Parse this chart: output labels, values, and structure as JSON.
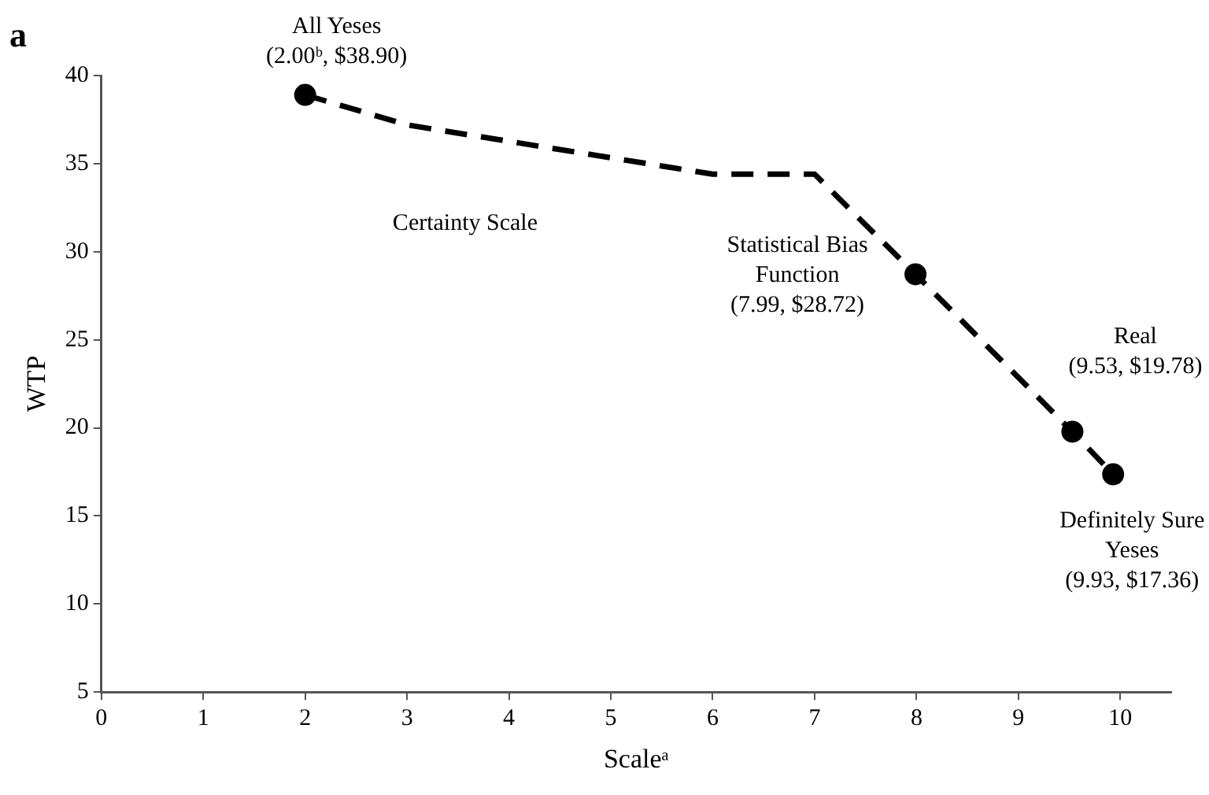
{
  "chart_data": {
    "type": "line",
    "xlabel": "Scaleᵃ",
    "ylabel": "WTP",
    "xlim": [
      0,
      10.5
    ],
    "xticks": [
      0,
      1,
      2,
      3,
      4,
      5,
      6,
      7,
      8,
      9,
      10
    ],
    "ylim": [
      5,
      40
    ],
    "yticks": [
      5,
      10,
      15,
      20,
      25,
      30,
      35,
      40
    ],
    "grid": false,
    "legend": false,
    "series": [
      {
        "type": "line",
        "color": "#000000",
        "line_style": "dashed",
        "marker": "none",
        "x": [
          2.0,
          3,
          6,
          7,
          7.99,
          9.53,
          9.93,
          10.0
        ],
        "values": [
          38.9,
          37.2,
          34.4,
          34.4,
          28.72,
          19.78,
          17.36,
          16.9
        ]
      },
      {
        "type": "scatter",
        "color": "#000000",
        "marker": "circle",
        "x": [
          2.0,
          7.99,
          9.53,
          9.93
        ],
        "values": [
          38.9,
          28.72,
          19.78,
          17.36
        ]
      }
    ],
    "annotations": [
      "a",
      {
        "text": "All Yeses\n(2.00ᵇ, $38.90)",
        "x": 2.0,
        "y": 38.9
      },
      "Certainty Scale",
      {
        "text": "Statistical Bias\nFunction\n(7.99, $28.72)",
        "x": 7.99,
        "y": 28.72
      },
      {
        "text": "Real\n(9.53, $19.78)",
        "x": 9.53,
        "y": 19.78
      },
      {
        "text": "Definitely Sure\nYeses\n(9.93, $17.36)",
        "x": 9.93,
        "y": 17.36
      }
    ]
  }
}
